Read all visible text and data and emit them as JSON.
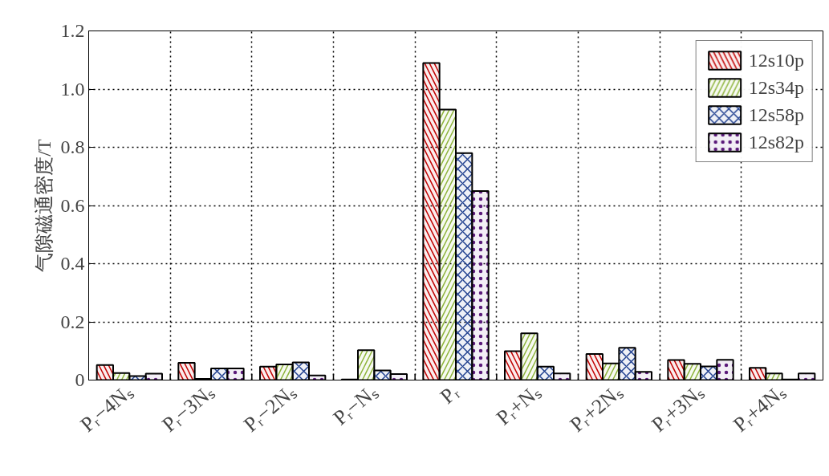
{
  "chart_data": {
    "type": "bar",
    "ylabel": "气隙磁通密度/T",
    "categories": [
      "Pᵣ−4Nₛ",
      "Pᵣ−3Nₛ",
      "Pᵣ−2Nₛ",
      "Pᵣ−Nₛ",
      "Pᵣ",
      "Pᵣ+Nₛ",
      "Pᵣ+2Nₛ",
      "Pᵣ+3Nₛ",
      "Pᵣ+4Nₛ"
    ],
    "series": [
      {
        "name": "12s10p",
        "color": "#c00000",
        "values": [
          0.052,
          0.059,
          0.046,
          0.002,
          1.09,
          0.099,
          0.09,
          0.069,
          0.042
        ]
      },
      {
        "name": "12s34p",
        "color": "#8db33a",
        "values": [
          0.024,
          0.004,
          0.054,
          0.103,
          0.93,
          0.161,
          0.057,
          0.056,
          0.023
        ]
      },
      {
        "name": "12s58p",
        "color": "#1f3f8f",
        "values": [
          0.014,
          0.04,
          0.061,
          0.033,
          0.78,
          0.046,
          0.111,
          0.047,
          0.002
        ]
      },
      {
        "name": "12s82p",
        "color": "#5b1a7a",
        "values": [
          0.022,
          0.04,
          0.016,
          0.021,
          0.65,
          0.023,
          0.028,
          0.07,
          0.023
        ]
      }
    ],
    "ylim": [
      0,
      1.2
    ],
    "yticks": [
      0,
      {
        "value": 0.2,
        "label": "0.2"
      },
      {
        "value": 0.4,
        "label": "0.4"
      },
      {
        "value": 0.6,
        "label": "0.6"
      },
      {
        "value": 0.8,
        "label": "0.8"
      },
      {
        "value": 1.0,
        "label": "1.0"
      },
      {
        "value": 1.2,
        "label": "1.2"
      }
    ],
    "grid": true,
    "legend": "top right"
  }
}
